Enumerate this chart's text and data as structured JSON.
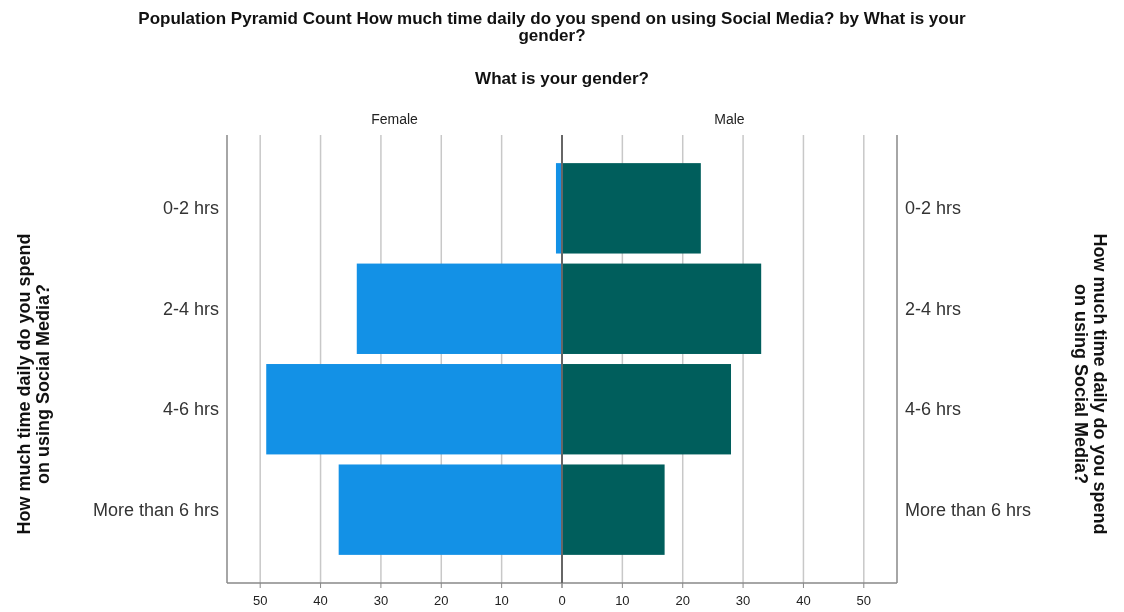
{
  "chart_data": [
    {
      "type": "bar",
      "orientation": "horizontal",
      "title": "Population Pyramid Count How much time daily do you spend on using Social Media? by What is your gender?",
      "subtitle": "What is your gender?",
      "ylabel": "How much time daily do you spend on using Social Media?",
      "categories": [
        "0-2 hrs",
        "2-4 hrs",
        "4-6 hrs",
        "More than 6 hrs"
      ],
      "series": [
        {
          "name": "Female",
          "color": "#1391e6",
          "values": [
            1,
            34,
            49,
            37
          ]
        }
      ],
      "xlim": [
        55.5,
        0
      ],
      "xticks": [
        50,
        40,
        30,
        20,
        10,
        {
          "value": 0,
          "label": null
        }
      ],
      "grid": "x"
    },
    {
      "type": "bar",
      "orientation": "horizontal",
      "ylabel": "How much time daily do you spend on using Social Media?",
      "categories": [
        "0-2 hrs",
        "2-4 hrs",
        "4-6 hrs",
        "More than 6 hrs"
      ],
      "series": [
        {
          "name": "Male",
          "color": "#005e5c",
          "values": [
            23,
            33,
            28,
            17
          ]
        }
      ],
      "xlim": [
        0,
        55.5
      ],
      "xticks": [
        0,
        10,
        20,
        30,
        40,
        50
      ],
      "grid": "x"
    }
  ]
}
